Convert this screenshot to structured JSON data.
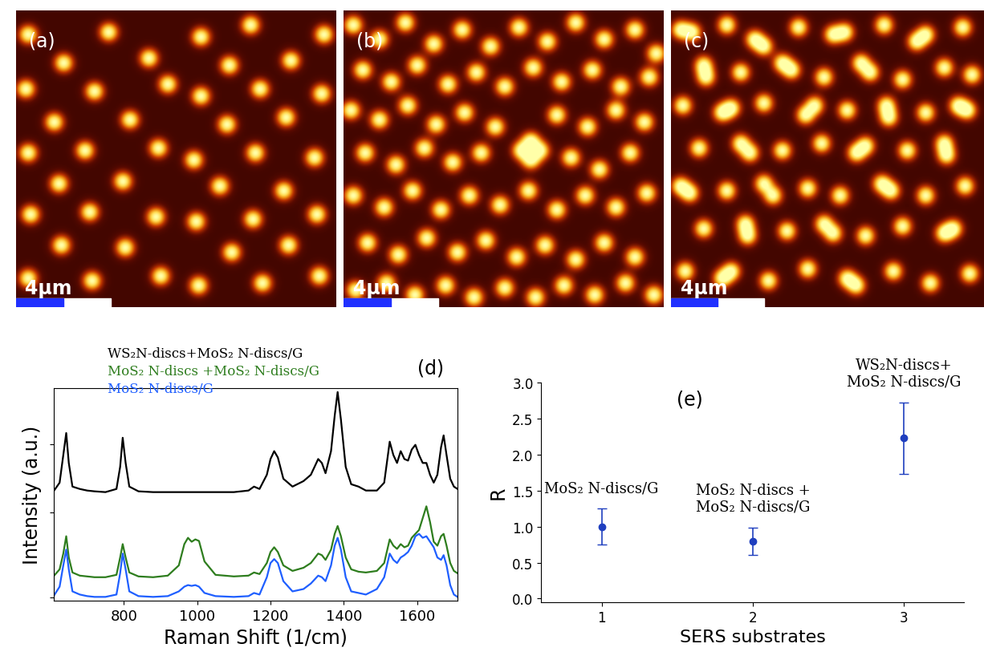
{
  "chart_data": [
    {
      "type": "image",
      "title": "(a)",
      "xlim": [
        0,
        13.5
      ],
      "ylim": [
        12.5,
        0
      ],
      "tick_labels": false,
      "scale_bar": {
        "value": 4,
        "label": "4μm"
      },
      "spots": [
        [
          0.5,
          1.0
        ],
        [
          3.9,
          0.9
        ],
        [
          7.8,
          1.1
        ],
        [
          9.9,
          0.6
        ],
        [
          13.0,
          1.0
        ],
        [
          2.0,
          2.2
        ],
        [
          5.6,
          2.0
        ],
        [
          9.0,
          2.3
        ],
        [
          11.6,
          2.1
        ],
        [
          0.4,
          3.3
        ],
        [
          3.3,
          3.4
        ],
        [
          6.4,
          3.1
        ],
        [
          7.8,
          3.6
        ],
        [
          10.3,
          3.3
        ],
        [
          12.9,
          3.5
        ],
        [
          1.6,
          4.7
        ],
        [
          4.8,
          4.6
        ],
        [
          8.9,
          4.8
        ],
        [
          11.4,
          4.5
        ],
        [
          0.5,
          6.0
        ],
        [
          2.9,
          5.9
        ],
        [
          6.0,
          5.8
        ],
        [
          7.5,
          6.3
        ],
        [
          10.1,
          6.0
        ],
        [
          12.6,
          6.2
        ],
        [
          1.8,
          7.3
        ],
        [
          4.5,
          7.2
        ],
        [
          8.6,
          7.4
        ],
        [
          11.3,
          7.6
        ],
        [
          0.6,
          8.6
        ],
        [
          3.1,
          8.5
        ],
        [
          5.9,
          8.7
        ],
        [
          7.6,
          8.9
        ],
        [
          10.0,
          8.8
        ],
        [
          12.7,
          8.6
        ],
        [
          1.9,
          9.9
        ],
        [
          4.6,
          10.0
        ],
        [
          9.1,
          10.2
        ],
        [
          11.5,
          9.9
        ],
        [
          0.5,
          11.3
        ],
        [
          3.2,
          11.4
        ],
        [
          6.1,
          11.2
        ],
        [
          7.7,
          11.6
        ],
        [
          10.4,
          11.5
        ],
        [
          12.8,
          11.2
        ]
      ]
    },
    {
      "type": "image",
      "title": "(b)",
      "xlim": [
        0,
        13.5
      ],
      "ylim": [
        12.5,
        0
      ],
      "tick_labels": false,
      "scale_bar": {
        "value": 4,
        "label": "4μm"
      },
      "spots": [
        [
          0.4,
          0.6
        ],
        [
          1.5,
          1.2
        ],
        [
          2.6,
          0.5
        ],
        [
          3.8,
          1.4
        ],
        [
          5.0,
          0.8
        ],
        [
          6.2,
          1.5
        ],
        [
          7.4,
          0.7
        ],
        [
          8.6,
          1.3
        ],
        [
          9.8,
          0.5
        ],
        [
          11.0,
          1.2
        ],
        [
          12.3,
          0.8
        ],
        [
          13.2,
          1.8
        ],
        [
          0.8,
          2.5
        ],
        [
          2.0,
          3.0
        ],
        [
          3.1,
          2.3
        ],
        [
          4.4,
          3.1
        ],
        [
          5.6,
          2.6
        ],
        [
          6.8,
          3.2
        ],
        [
          8.0,
          2.4
        ],
        [
          9.2,
          3.0
        ],
        [
          10.5,
          2.5
        ],
        [
          11.7,
          3.2
        ],
        [
          12.9,
          2.8
        ],
        [
          0.3,
          4.2
        ],
        [
          1.5,
          4.6
        ],
        [
          2.7,
          4.0
        ],
        [
          3.9,
          4.8
        ],
        [
          5.1,
          4.3
        ],
        [
          6.4,
          4.9
        ],
        [
          9.0,
          4.4
        ],
        [
          10.3,
          4.9
        ],
        [
          11.5,
          4.2
        ],
        [
          12.7,
          4.7
        ],
        [
          0.9,
          6.0
        ],
        [
          2.2,
          6.5
        ],
        [
          3.4,
          5.8
        ],
        [
          4.6,
          6.4
        ],
        [
          5.8,
          6.0
        ],
        [
          7.5,
          5.9
        ],
        [
          8.3,
          5.9
        ],
        [
          7.9,
          5.5
        ],
        [
          7.9,
          6.3
        ],
        [
          9.6,
          6.2
        ],
        [
          10.8,
          6.7
        ],
        [
          12.1,
          6.0
        ],
        [
          0.4,
          7.8
        ],
        [
          1.7,
          8.3
        ],
        [
          2.9,
          7.6
        ],
        [
          4.1,
          8.4
        ],
        [
          5.3,
          7.8
        ],
        [
          6.6,
          8.2
        ],
        [
          7.8,
          7.6
        ],
        [
          9.0,
          8.4
        ],
        [
          10.2,
          7.8
        ],
        [
          11.5,
          8.3
        ],
        [
          12.8,
          7.7
        ],
        [
          1.0,
          9.8
        ],
        [
          2.3,
          10.3
        ],
        [
          3.5,
          9.6
        ],
        [
          4.8,
          10.2
        ],
        [
          6.0,
          9.7
        ],
        [
          7.3,
          10.4
        ],
        [
          8.5,
          9.9
        ],
        [
          9.8,
          10.5
        ],
        [
          11.0,
          9.8
        ],
        [
          12.3,
          10.4
        ],
        [
          0.5,
          11.8
        ],
        [
          1.8,
          11.5
        ],
        [
          3.0,
          12.0
        ],
        [
          4.3,
          11.6
        ],
        [
          5.5,
          12.1
        ],
        [
          6.8,
          11.7
        ],
        [
          8.1,
          12.1
        ],
        [
          9.3,
          11.6
        ],
        [
          10.6,
          12.0
        ],
        [
          11.9,
          11.5
        ],
        [
          13.1,
          12.0
        ]
      ]
    },
    {
      "type": "image",
      "title": "(c)",
      "xlim": [
        0,
        13.5
      ],
      "ylim": [
        12.5,
        0
      ],
      "tick_labels": false,
      "scale_bar": {
        "value": 4,
        "label": "4μm"
      },
      "spots": [
        [
          0.4,
          0.8
        ],
        [
          0.9,
          0.9
        ],
        [
          2.4,
          0.6
        ],
        [
          3.6,
          1.2
        ],
        [
          4.0,
          1.5
        ],
        [
          5.5,
          0.7
        ],
        [
          7.0,
          1.0
        ],
        [
          7.5,
          0.9
        ],
        [
          9.2,
          0.6
        ],
        [
          10.6,
          1.3
        ],
        [
          11.0,
          1.0
        ],
        [
          12.6,
          0.7
        ],
        [
          1.4,
          2.3
        ],
        [
          1.5,
          2.8
        ],
        [
          3.0,
          2.6
        ],
        [
          4.8,
          2.2
        ],
        [
          5.2,
          2.5
        ],
        [
          6.6,
          2.8
        ],
        [
          8.2,
          2.2
        ],
        [
          8.6,
          2.6
        ],
        [
          10.0,
          2.9
        ],
        [
          11.8,
          2.4
        ],
        [
          13.0,
          2.7
        ],
        [
          0.5,
          4.0
        ],
        [
          2.2,
          4.3
        ],
        [
          2.6,
          4.1
        ],
        [
          4.0,
          3.9
        ],
        [
          5.8,
          4.4
        ],
        [
          6.2,
          4.0
        ],
        [
          7.6,
          4.2
        ],
        [
          9.3,
          4.0
        ],
        [
          9.4,
          4.5
        ],
        [
          11.0,
          4.3
        ],
        [
          12.4,
          4.0
        ],
        [
          12.8,
          4.2
        ],
        [
          1.2,
          5.8
        ],
        [
          3.0,
          5.6
        ],
        [
          3.4,
          6.0
        ],
        [
          4.8,
          5.9
        ],
        [
          6.5,
          5.6
        ],
        [
          8.0,
          6.0
        ],
        [
          8.4,
          5.7
        ],
        [
          10.2,
          5.9
        ],
        [
          11.8,
          5.6
        ],
        [
          11.9,
          6.1
        ],
        [
          0.4,
          7.4
        ],
        [
          0.8,
          7.7
        ],
        [
          2.4,
          7.6
        ],
        [
          4.0,
          7.3
        ],
        [
          4.4,
          7.8
        ],
        [
          5.9,
          7.5
        ],
        [
          7.3,
          7.8
        ],
        [
          9.1,
          7.3
        ],
        [
          9.5,
          7.6
        ],
        [
          11.0,
          7.8
        ],
        [
          12.7,
          7.4
        ],
        [
          1.4,
          9.2
        ],
        [
          3.2,
          9.0
        ],
        [
          3.3,
          9.5
        ],
        [
          5.0,
          9.3
        ],
        [
          6.6,
          9.0
        ],
        [
          7.0,
          9.4
        ],
        [
          8.4,
          9.5
        ],
        [
          10.0,
          9.1
        ],
        [
          11.8,
          9.4
        ],
        [
          12.2,
          9.2
        ],
        [
          0.6,
          11.0
        ],
        [
          2.2,
          11.3
        ],
        [
          2.6,
          11.0
        ],
        [
          4.2,
          11.4
        ],
        [
          5.9,
          10.9
        ],
        [
          7.6,
          11.3
        ],
        [
          8.0,
          11.6
        ],
        [
          9.6,
          11.0
        ],
        [
          11.2,
          11.5
        ],
        [
          12.9,
          11.1
        ]
      ]
    },
    {
      "type": "line",
      "title": "(d)",
      "xlabel": "Raman Shift (1/cm)",
      "ylabel": "Intensity (a.u.)",
      "xlim": [
        610,
        1710
      ],
      "xticks": [
        800,
        1000,
        1200,
        1400,
        1600
      ],
      "ylim": [
        0,
        2.7
      ],
      "yticks": [
        0.04,
        1.12,
        1.99
      ],
      "tick_labels": "x",
      "legend": "upper left",
      "x": [
        610,
        625,
        635,
        643,
        650,
        660,
        680,
        700,
        720,
        750,
        780,
        790,
        797,
        805,
        815,
        840,
        880,
        920,
        950,
        965,
        975,
        985,
        995,
        1005,
        1020,
        1050,
        1100,
        1140,
        1155,
        1170,
        1190,
        1200,
        1210,
        1220,
        1235,
        1260,
        1290,
        1310,
        1330,
        1340,
        1350,
        1365,
        1375,
        1383,
        1392,
        1405,
        1420,
        1440,
        1460,
        1490,
        1510,
        1525,
        1535,
        1545,
        1555,
        1565,
        1575,
        1585,
        1595,
        1605,
        1615,
        1625,
        1635,
        1645,
        1655,
        1665,
        1672,
        1680,
        1690,
        1700,
        1710
      ],
      "series": [
        {
          "name": "WS₂N-discs+MoS₂ N-discs/G",
          "color": "#000000",
          "values": [
            1.4,
            1.5,
            1.85,
            2.13,
            1.75,
            1.45,
            1.42,
            1.4,
            1.39,
            1.38,
            1.42,
            1.7,
            2.07,
            1.75,
            1.45,
            1.39,
            1.38,
            1.38,
            1.38,
            1.38,
            1.38,
            1.38,
            1.38,
            1.38,
            1.38,
            1.38,
            1.38,
            1.4,
            1.45,
            1.42,
            1.6,
            1.8,
            1.9,
            1.82,
            1.55,
            1.45,
            1.52,
            1.6,
            1.8,
            1.75,
            1.62,
            1.9,
            2.35,
            2.65,
            2.3,
            1.7,
            1.48,
            1.45,
            1.4,
            1.4,
            1.5,
            2.02,
            1.85,
            1.75,
            1.9,
            1.8,
            1.78,
            1.92,
            1.98,
            1.85,
            1.75,
            1.75,
            1.6,
            1.5,
            1.6,
            1.95,
            2.1,
            1.85,
            1.55,
            1.45,
            1.42
          ]
        },
        {
          "name": "MoS₂ N-discs +MoS₂ N-discs/G",
          "color": "#2e7d1e",
          "values": [
            0.32,
            0.4,
            0.6,
            0.82,
            0.55,
            0.36,
            0.32,
            0.31,
            0.3,
            0.3,
            0.33,
            0.55,
            0.72,
            0.55,
            0.36,
            0.31,
            0.3,
            0.32,
            0.45,
            0.72,
            0.8,
            0.75,
            0.78,
            0.76,
            0.5,
            0.33,
            0.31,
            0.32,
            0.36,
            0.34,
            0.48,
            0.62,
            0.68,
            0.62,
            0.45,
            0.38,
            0.42,
            0.48,
            0.6,
            0.58,
            0.52,
            0.65,
            0.85,
            0.95,
            0.82,
            0.55,
            0.4,
            0.37,
            0.36,
            0.38,
            0.48,
            0.78,
            0.7,
            0.66,
            0.72,
            0.68,
            0.7,
            0.8,
            0.85,
            0.9,
            1.05,
            1.2,
            1.0,
            0.75,
            0.7,
            0.82,
            0.85,
            0.7,
            0.48,
            0.38,
            0.35
          ]
        },
        {
          "name": "MoS₂ N-discs/G",
          "color": "#1f5fff",
          "values": [
            0.07,
            0.18,
            0.45,
            0.65,
            0.4,
            0.12,
            0.08,
            0.06,
            0.05,
            0.05,
            0.08,
            0.35,
            0.6,
            0.4,
            0.12,
            0.06,
            0.05,
            0.06,
            0.12,
            0.18,
            0.2,
            0.19,
            0.2,
            0.18,
            0.1,
            0.06,
            0.05,
            0.06,
            0.1,
            0.08,
            0.3,
            0.48,
            0.53,
            0.48,
            0.25,
            0.12,
            0.15,
            0.22,
            0.32,
            0.3,
            0.25,
            0.45,
            0.7,
            0.8,
            0.65,
            0.3,
            0.12,
            0.1,
            0.08,
            0.15,
            0.3,
            0.6,
            0.52,
            0.48,
            0.55,
            0.58,
            0.62,
            0.7,
            0.82,
            0.85,
            0.8,
            0.82,
            0.75,
            0.68,
            0.55,
            0.52,
            0.58,
            0.45,
            0.2,
            0.08,
            0.05
          ]
        }
      ]
    },
    {
      "type": "scatter",
      "title": "(e)",
      "xlabel": "SERS substrates",
      "ylabel": "R",
      "x": [
        1,
        2,
        3
      ],
      "values": [
        1.0,
        0.8,
        2.23
      ],
      "errors": [
        0.25,
        0.19,
        0.5
      ],
      "point_labels": [
        "MoS₂ N-discs/G",
        "MoS₂ N-discs +\nMoS₂ N-discs/G",
        "WS₂N-discs+\nMoS₂ N-discs/G"
      ],
      "xlim": [
        0.6,
        3.4
      ],
      "xticks": [
        1,
        2,
        3
      ],
      "ylim": [
        -0.05,
        3.0
      ],
      "yticks": [
        {
          "value": 0,
          "label": "0.0"
        },
        {
          "value": 0.5,
          "label": "0.5"
        },
        {
          "value": 1,
          "label": "1.0"
        },
        {
          "value": 1.5,
          "label": "1.5"
        },
        {
          "value": 2,
          "label": "2.0"
        },
        {
          "value": 2.5,
          "label": "2.5"
        },
        {
          "value": 3,
          "label": "3.0"
        }
      ],
      "color": "#1f3fbf",
      "marker": "o"
    }
  ]
}
